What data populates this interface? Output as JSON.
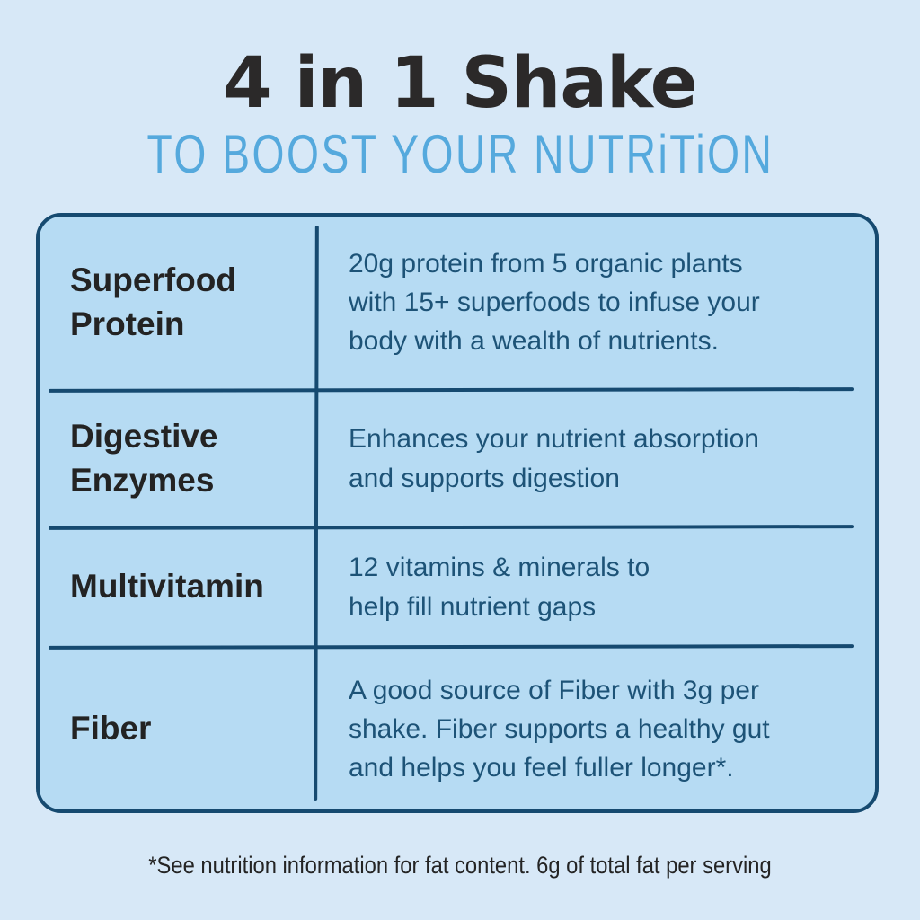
{
  "header": {
    "title": "4 in 1 Shake",
    "subtitle": "TO BOOST YOUR NUTRiTiON"
  },
  "table": {
    "rows": [
      {
        "label_lines": [
          "Superfood",
          "Protein"
        ],
        "description_lines": [
          "20g protein from 5 organic plants",
          "with 15+ superfoods to infuse your",
          "body with a wealth of nutrients."
        ]
      },
      {
        "label_lines": [
          "Digestive",
          "Enzymes"
        ],
        "description_lines": [
          "Enhances your nutrient absorption",
          "and supports digestion"
        ]
      },
      {
        "label_lines": [
          "Multivitamin"
        ],
        "description_lines": [
          "12 vitamins & minerals to",
          "help fill nutrient gaps"
        ]
      },
      {
        "label_lines": [
          "Fiber"
        ],
        "description_lines": [
          "A good source of Fiber with 3g per",
          "shake. Fiber supports a healthy gut",
          "and helps you feel fuller longer*."
        ]
      }
    ]
  },
  "footer": {
    "note": "*See nutrition information for fat content. 6g of total fat per serving"
  },
  "colors": {
    "page_background": "#d7e8f7",
    "table_fill": "#b6dbf3",
    "table_border_navy": "#164a70",
    "title_dark": "#2b2929",
    "subtitle_blue": "#55a9dd",
    "description_blue": "#1d5377",
    "label_dark": "#232323",
    "footnote_dark": "#242424"
  }
}
